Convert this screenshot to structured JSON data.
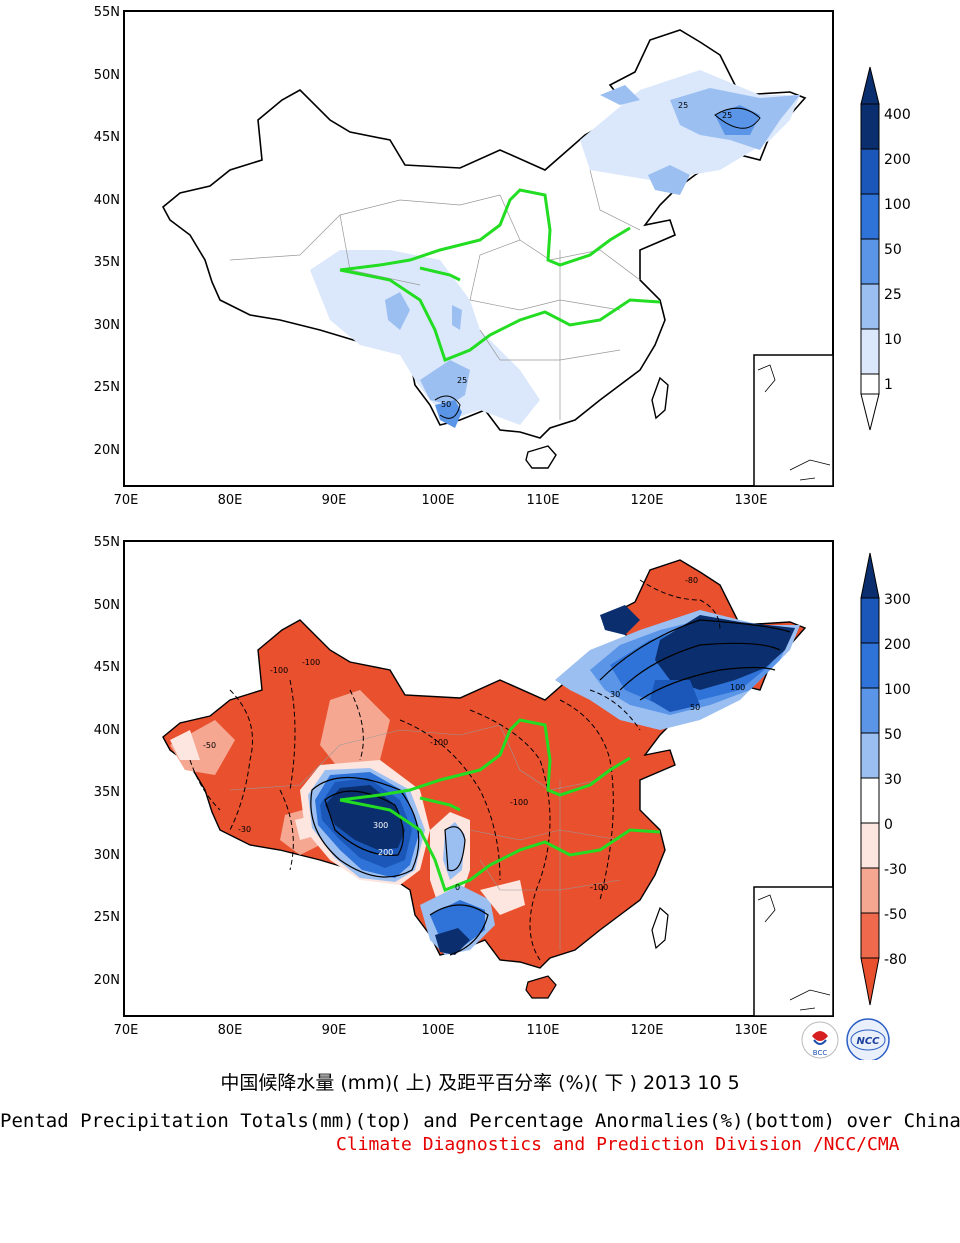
{
  "top_map": {
    "lat_labels": [
      "55N",
      "50N",
      "45N",
      "40N",
      "35N",
      "30N",
      "25N",
      "20N"
    ],
    "lon_labels": [
      "70E",
      "80E",
      "90E",
      "100E",
      "110E",
      "120E",
      "130E"
    ],
    "colorbar_labels": [
      "400",
      "200",
      "100",
      "50",
      "25",
      "10",
      "1"
    ],
    "colorbar_colors": [
      "#0b2f6e",
      "#1a57b8",
      "#2f73d8",
      "#5a95e8",
      "#9cbff2",
      "#dbe8fb",
      "#ffffff"
    ],
    "contour_labels": [
      "25",
      "25",
      "25",
      "50"
    ]
  },
  "bottom_map": {
    "lat_labels": [
      "55N",
      "50N",
      "45N",
      "40N",
      "35N",
      "30N",
      "25N",
      "20N"
    ],
    "lon_labels": [
      "70E",
      "80E",
      "90E",
      "100E",
      "110E",
      "120E",
      "130E"
    ],
    "colorbar_labels": [
      "300",
      "200",
      "100",
      "50",
      "30",
      "0",
      "-30",
      "-50",
      "-80"
    ],
    "colorbar_colors": [
      "#0b2f6e",
      "#1a57b8",
      "#2f73d8",
      "#5a95e8",
      "#9cbff2",
      "#ffffff",
      "#fde6e0",
      "#f6a792",
      "#ef6a4c",
      "#e8502e"
    ],
    "contour_labels": [
      "-100",
      "-100",
      "-100",
      "-100",
      "-100",
      "-80",
      "-50",
      "-30",
      "300",
      "200",
      "100",
      "50",
      "30",
      "0"
    ]
  },
  "logos": {
    "bcc": "BCC",
    "ncc": "NCC"
  },
  "caption": {
    "chinese": "中国候降水量 (mm)( 上) 及距平百分率 (%)( 下 ) 2013 10 5",
    "english": "Pentad Precipitation Totals(mm)(top) and Percentage Anormalies(%)(bottom) over China",
    "division": "Climate Diagnostics and Prediction Division /NCC/CMA"
  },
  "colors": {
    "river": "#22dd22",
    "border": "#000000",
    "province": "#999999",
    "division_text": "#e60000"
  }
}
